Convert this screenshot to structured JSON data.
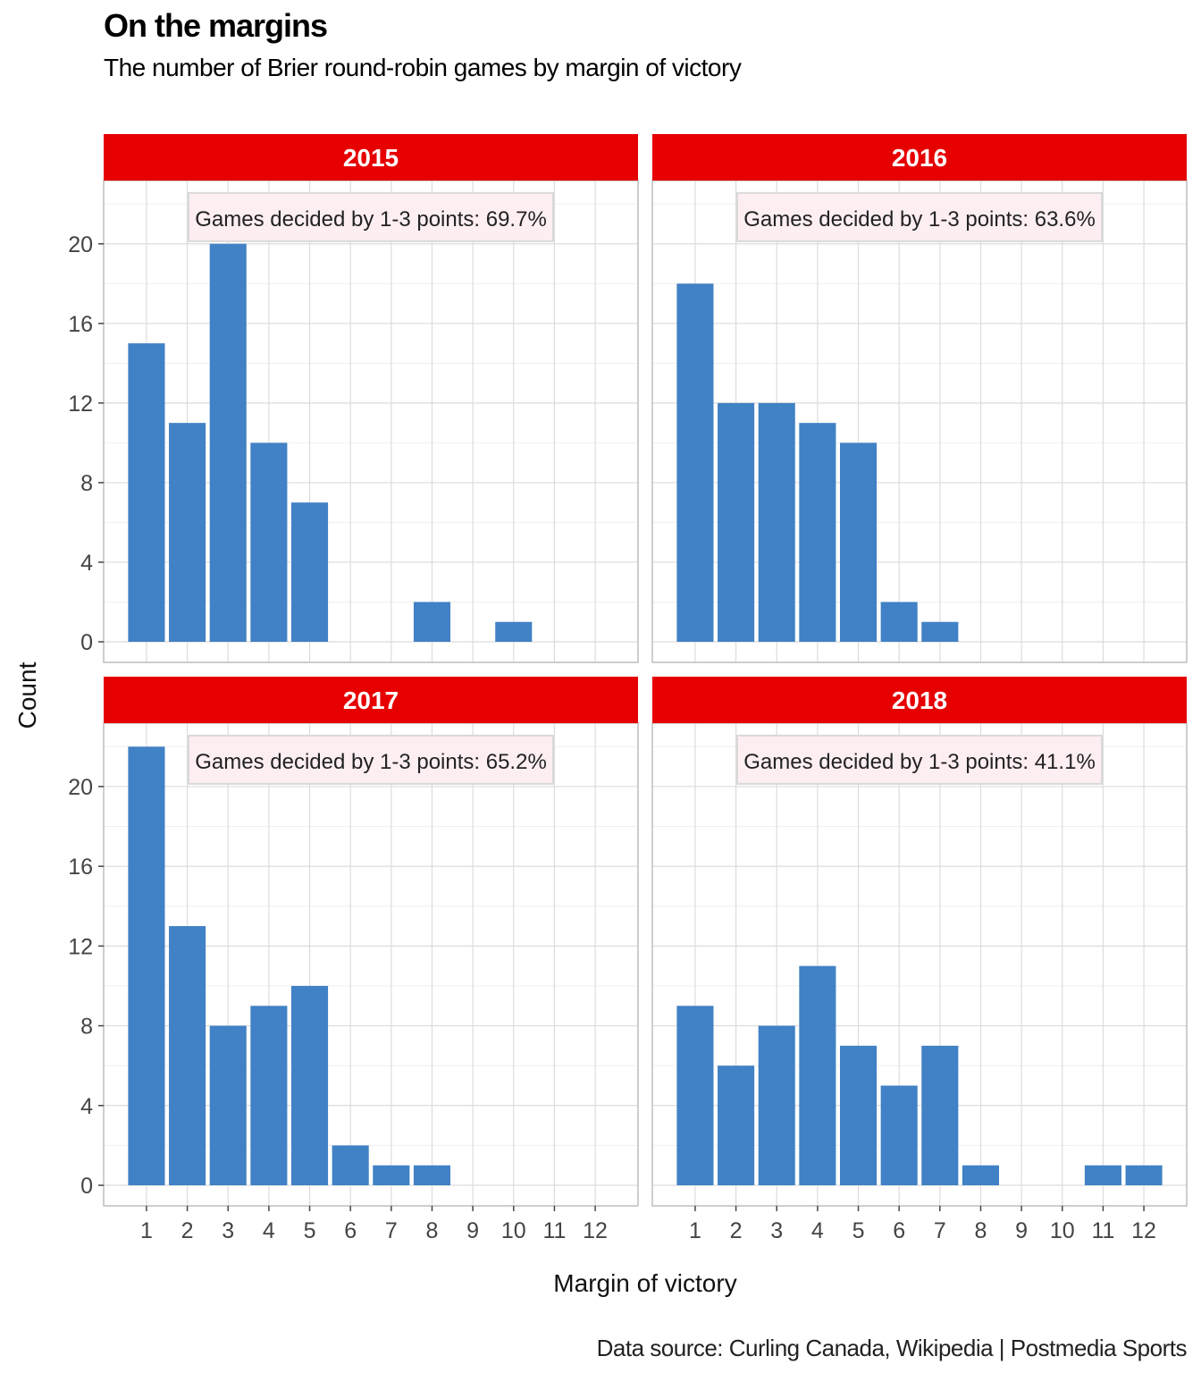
{
  "chart_data": {
    "type": "bar",
    "title": "On the margins",
    "subtitle": "The number of Brier round-robin games by margin of victory",
    "xlabel": "Margin of victory",
    "ylabel": "Count",
    "caption": "Data source: Curling Canada, Wikipedia | Postmedia Sports",
    "x_ticks": [
      "1",
      "2",
      "3",
      "4",
      "5",
      "6",
      "7",
      "8",
      "9",
      "10",
      "11",
      "12"
    ],
    "y_ticks": [
      0,
      4,
      8,
      12,
      16,
      20
    ],
    "xlim": [
      0.5,
      12.5
    ],
    "ylim": [
      0,
      23
    ],
    "grid": true,
    "colors": {
      "bar": "#4181C5",
      "strip": "#E60000",
      "annotation_fill": "#FDEEF1",
      "annotation_border": "#D9D9D9",
      "panel_border": "#BDBDBD",
      "grid_major": "#DCDCDC",
      "grid_minor": "#EFEFEF"
    },
    "facets": [
      {
        "label": "2015",
        "annotation": "Games decided by 1-3 points: 69.7%",
        "bars": [
          {
            "x": 1,
            "y": 15
          },
          {
            "x": 2,
            "y": 11
          },
          {
            "x": 3,
            "y": 20
          },
          {
            "x": 4,
            "y": 10
          },
          {
            "x": 5,
            "y": 7
          },
          {
            "x": 8,
            "y": 2
          },
          {
            "x": 10,
            "y": 1
          }
        ]
      },
      {
        "label": "2016",
        "annotation": "Games decided by 1-3 points: 63.6%",
        "bars": [
          {
            "x": 1,
            "y": 18
          },
          {
            "x": 2,
            "y": 12
          },
          {
            "x": 3,
            "y": 12
          },
          {
            "x": 4,
            "y": 11
          },
          {
            "x": 5,
            "y": 10
          },
          {
            "x": 6,
            "y": 2
          },
          {
            "x": 7,
            "y": 1
          }
        ]
      },
      {
        "label": "2017",
        "annotation": "Games decided by 1-3 points: 65.2%",
        "bars": [
          {
            "x": 1,
            "y": 22
          },
          {
            "x": 2,
            "y": 13
          },
          {
            "x": 3,
            "y": 8
          },
          {
            "x": 4,
            "y": 9
          },
          {
            "x": 5,
            "y": 10
          },
          {
            "x": 6,
            "y": 2
          },
          {
            "x": 7,
            "y": 1
          },
          {
            "x": 8,
            "y": 1
          }
        ]
      },
      {
        "label": "2018",
        "annotation": "Games decided by 1-3 points: 41.1%",
        "bars": [
          {
            "x": 1,
            "y": 9
          },
          {
            "x": 2,
            "y": 6
          },
          {
            "x": 3,
            "y": 8
          },
          {
            "x": 4,
            "y": 11
          },
          {
            "x": 5,
            "y": 7
          },
          {
            "x": 6,
            "y": 5
          },
          {
            "x": 7,
            "y": 7
          },
          {
            "x": 8,
            "y": 1
          },
          {
            "x": 11,
            "y": 1
          },
          {
            "x": 12,
            "y": 1
          }
        ]
      }
    ]
  }
}
